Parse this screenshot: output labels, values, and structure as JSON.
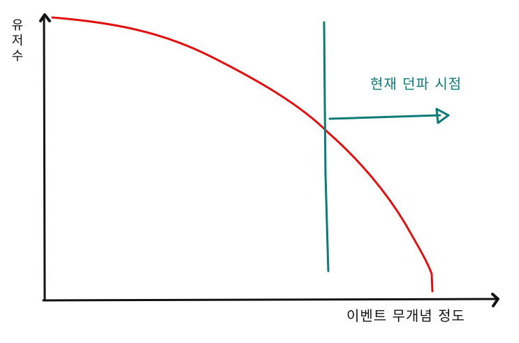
{
  "axes": {
    "y_label": "유저수",
    "x_label": "이벤트 무개념 정도"
  },
  "annotation": {
    "text": "현재 던파 시점"
  },
  "colors": {
    "axis": "#111111",
    "curve": "#e01010",
    "marker": "#0e7a78"
  }
}
